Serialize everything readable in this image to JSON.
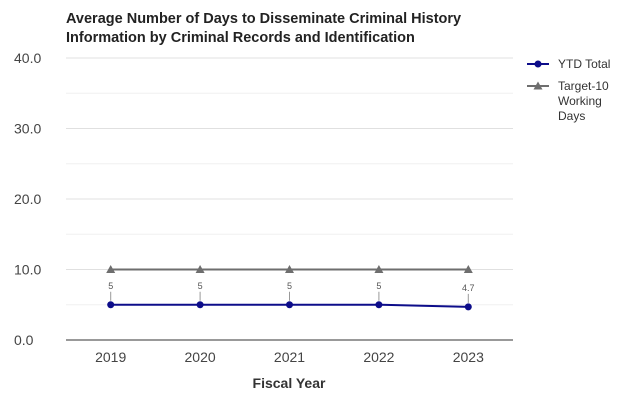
{
  "chart_data": {
    "type": "line",
    "title": [
      "Average Number of Days to Disseminate Criminal History",
      "Information by Criminal Records and Identification"
    ],
    "xlabel": "Fiscal Year",
    "ylabel": "",
    "categories": [
      "2019",
      "2020",
      "2021",
      "2022",
      "2023"
    ],
    "ylim": [
      0,
      40
    ],
    "y_ticks": [
      "0.0",
      "10.0",
      "20.0",
      "30.0",
      "40.0"
    ],
    "grid": true,
    "legend_position": "right",
    "series": [
      {
        "name": "YTD Total",
        "values": [
          5,
          5,
          5,
          5,
          4.7
        ],
        "data_labels": [
          "5",
          "5",
          "5",
          "5",
          "4.7"
        ],
        "color": "#0d0d8a",
        "marker": "circle"
      },
      {
        "name": [
          "Target-10",
          "Working",
          "Days"
        ],
        "values": [
          10,
          10,
          10,
          10,
          10
        ],
        "color": "#6e6e6e",
        "marker": "triangle"
      }
    ]
  }
}
